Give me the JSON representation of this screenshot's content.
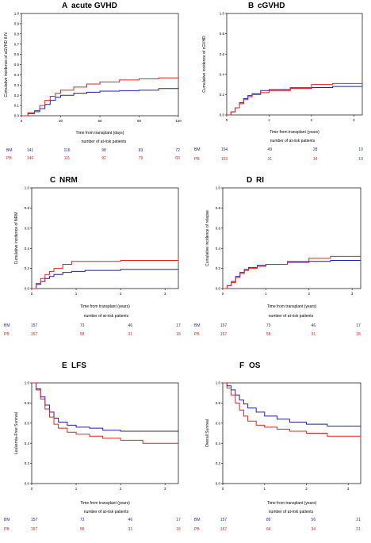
{
  "colors": {
    "bm": "#1f1fa8",
    "pb": "#e32222",
    "axis": "#000000"
  },
  "chart_data": [
    {
      "id": "A",
      "type": "line",
      "title": "acute GVHD",
      "xlabel": "Time from transplant (days)",
      "ylabel": "Cumulative incidence of aGVHD II-IV",
      "xlim": [
        0,
        120
      ],
      "ylim": [
        0,
        1
      ],
      "xticks": [
        "0",
        "30",
        "60",
        "90",
        "120"
      ],
      "yticks": [
        "0.0",
        "0.1",
        "0.2",
        "0.3",
        "0.4",
        "0.5",
        "0.6",
        "0.7",
        "0.8",
        "0.9",
        "1.0"
      ],
      "series": [
        {
          "name": "BM",
          "color": "#1f1fa8",
          "x": [
            0,
            5,
            10,
            14,
            18,
            22,
            26,
            30,
            40,
            50,
            60,
            75,
            90,
            105,
            120
          ],
          "y": [
            0,
            0.02,
            0.04,
            0.07,
            0.11,
            0.15,
            0.18,
            0.2,
            0.22,
            0.23,
            0.24,
            0.245,
            0.25,
            0.265,
            0.28
          ]
        },
        {
          "name": "PB",
          "color": "#e32222",
          "x": [
            0,
            5,
            10,
            14,
            18,
            22,
            26,
            30,
            40,
            50,
            60,
            75,
            90,
            105,
            120
          ],
          "y": [
            0,
            0.03,
            0.05,
            0.1,
            0.15,
            0.19,
            0.22,
            0.25,
            0.28,
            0.31,
            0.33,
            0.35,
            0.36,
            0.37,
            0.38
          ]
        }
      ],
      "risk": {
        "title": "number of at-risk patients",
        "labels": [
          "BM",
          "PB"
        ],
        "bm": [
          "141",
          "116",
          "98",
          "83",
          "72"
        ],
        "pb": [
          "146",
          "111",
          "92",
          "79",
          "60"
        ]
      }
    },
    {
      "id": "B",
      "type": "line",
      "title": "cGVHD",
      "xlabel": "Time from transplant (years)",
      "ylabel": "Cumulative incidence of cGVHD",
      "xlim": [
        0,
        3.2
      ],
      "ylim": [
        0,
        1
      ],
      "xticks": [
        "0",
        "1",
        "2",
        "3"
      ],
      "yticks": [
        "0.0",
        "0.2",
        "0.4",
        "0.6",
        "0.8",
        "1.0"
      ],
      "series": [
        {
          "name": "BM",
          "color": "#1f1fa8",
          "x": [
            0,
            0.1,
            0.2,
            0.3,
            0.4,
            0.5,
            0.6,
            0.8,
            1.0,
            1.5,
            2.0,
            2.5,
            3.2
          ],
          "y": [
            0,
            0.03,
            0.07,
            0.12,
            0.16,
            0.19,
            0.21,
            0.24,
            0.25,
            0.26,
            0.27,
            0.28,
            0.28
          ]
        },
        {
          "name": "PB",
          "color": "#e32222",
          "x": [
            0,
            0.1,
            0.2,
            0.3,
            0.4,
            0.5,
            0.6,
            0.8,
            1.0,
            1.5,
            2.0,
            2.5,
            3.2
          ],
          "y": [
            0,
            0.03,
            0.07,
            0.11,
            0.15,
            0.18,
            0.2,
            0.22,
            0.24,
            0.27,
            0.3,
            0.31,
            0.32
          ]
        }
      ],
      "risk": {
        "title": "number of at-risk patients",
        "labels": [
          "BM",
          "PB"
        ],
        "bm": [
          "154",
          "49",
          "28",
          "10"
        ],
        "pb": [
          "153",
          "31",
          "14",
          "10"
        ]
      }
    },
    {
      "id": "C",
      "type": "line",
      "title": "NRM",
      "xlabel": "Time from transplant (years)",
      "ylabel": "Cumulative incidence of NRM",
      "xlim": [
        0,
        3.3
      ],
      "ylim": [
        0,
        1
      ],
      "xticks": [
        "0",
        "1",
        "2",
        "3"
      ],
      "yticks": [
        "0.0",
        "0.2",
        "0.4",
        "0.6",
        "0.8",
        "1.0"
      ],
      "series": [
        {
          "name": "BM",
          "color": "#1f1fa8",
          "x": [
            0,
            0.1,
            0.2,
            0.3,
            0.4,
            0.5,
            0.7,
            0.9,
            1.2,
            1.6,
            2.0,
            2.5,
            3.3
          ],
          "y": [
            0,
            0.04,
            0.07,
            0.1,
            0.12,
            0.14,
            0.16,
            0.17,
            0.18,
            0.18,
            0.19,
            0.19,
            0.19
          ]
        },
        {
          "name": "PB",
          "color": "#e32222",
          "x": [
            0,
            0.1,
            0.2,
            0.3,
            0.4,
            0.5,
            0.7,
            0.9,
            1.2,
            1.6,
            2.0,
            2.5,
            3.3
          ],
          "y": [
            0,
            0.05,
            0.1,
            0.14,
            0.17,
            0.2,
            0.24,
            0.27,
            0.27,
            0.27,
            0.28,
            0.28,
            0.29
          ]
        }
      ],
      "risk": {
        "title": "number of at-risk patients",
        "labels": [
          "BM",
          "PB"
        ],
        "bm": [
          "157",
          "73",
          "46",
          "17"
        ],
        "pb": [
          "157",
          "58",
          "31",
          "18"
        ]
      }
    },
    {
      "id": "D",
      "type": "line",
      "title": "RI",
      "xlabel": "Time from transplant (years)",
      "ylabel": "Cumulative incidence of relapse",
      "xlim": [
        0,
        3.2
      ],
      "ylim": [
        0,
        1
      ],
      "xticks": [
        "0",
        "1",
        "2",
        "3"
      ],
      "yticks": [
        "0.0",
        "0.2",
        "0.4",
        "0.6",
        "0.8",
        "1.0"
      ],
      "series": [
        {
          "name": "BM",
          "color": "#1f1fa8",
          "x": [
            0,
            0.1,
            0.2,
            0.3,
            0.4,
            0.5,
            0.6,
            0.8,
            1.0,
            1.5,
            2.0,
            2.5,
            3.2
          ],
          "y": [
            0,
            0.03,
            0.07,
            0.12,
            0.16,
            0.19,
            0.21,
            0.23,
            0.24,
            0.26,
            0.27,
            0.28,
            0.28
          ]
        },
        {
          "name": "PB",
          "color": "#e32222",
          "x": [
            0,
            0.1,
            0.2,
            0.3,
            0.4,
            0.5,
            0.6,
            0.8,
            1.0,
            1.5,
            2.0,
            2.5,
            3.2
          ],
          "y": [
            0,
            0.03,
            0.06,
            0.11,
            0.15,
            0.18,
            0.2,
            0.22,
            0.24,
            0.27,
            0.3,
            0.32,
            0.32
          ]
        }
      ],
      "risk": {
        "title": "number of at-risk patients",
        "labels": [
          "BM",
          "PB"
        ],
        "bm": [
          "157",
          "73",
          "46",
          "17"
        ],
        "pb": [
          "157",
          "58",
          "31",
          "18"
        ]
      }
    },
    {
      "id": "E",
      "type": "line",
      "title": "LFS",
      "xlabel": "Time from transplant (years)",
      "ylabel": "Leukemia-Free Survival",
      "xlim": [
        0,
        3.3
      ],
      "ylim": [
        0,
        1
      ],
      "xticks": [
        "0",
        "1",
        "2",
        "3"
      ],
      "yticks": [
        "0.0",
        "0.2",
        "0.4",
        "0.6",
        "0.8",
        "1.0"
      ],
      "series": [
        {
          "name": "BM",
          "color": "#1f1fa8",
          "x": [
            0,
            0.1,
            0.2,
            0.3,
            0.4,
            0.5,
            0.6,
            0.8,
            1.0,
            1.3,
            1.6,
            2.0,
            2.5,
            3.3
          ],
          "y": [
            1,
            0.94,
            0.86,
            0.78,
            0.71,
            0.65,
            0.61,
            0.58,
            0.56,
            0.55,
            0.53,
            0.52,
            0.52,
            0.52
          ]
        },
        {
          "name": "PB",
          "color": "#e32222",
          "x": [
            0,
            0.1,
            0.2,
            0.3,
            0.4,
            0.5,
            0.6,
            0.8,
            1.0,
            1.3,
            1.6,
            2.0,
            2.5,
            3.3
          ],
          "y": [
            1,
            0.93,
            0.84,
            0.74,
            0.66,
            0.59,
            0.55,
            0.51,
            0.49,
            0.47,
            0.45,
            0.43,
            0.4,
            0.39
          ]
        }
      ],
      "risk": {
        "title": "number of at-risk patients",
        "labels": [
          "BM",
          "PB"
        ],
        "bm": [
          "157",
          "73",
          "46",
          "17"
        ],
        "pb": [
          "157",
          "58",
          "31",
          "18"
        ]
      }
    },
    {
      "id": "F",
      "type": "line",
      "title": "OS",
      "xlabel": "Time from transplant (years)",
      "ylabel": "Overall Survival",
      "xlim": [
        0,
        3.3
      ],
      "ylim": [
        0,
        1
      ],
      "xticks": [
        "0",
        "1",
        "2",
        "3"
      ],
      "yticks": [
        "0.0",
        "0.2",
        "0.4",
        "0.6",
        "0.8",
        "1.0"
      ],
      "series": [
        {
          "name": "BM",
          "color": "#1f1fa8",
          "x": [
            0,
            0.1,
            0.2,
            0.3,
            0.4,
            0.5,
            0.6,
            0.8,
            1.0,
            1.3,
            1.6,
            2.0,
            2.5,
            3.3
          ],
          "y": [
            1,
            0.97,
            0.93,
            0.88,
            0.83,
            0.79,
            0.75,
            0.71,
            0.67,
            0.64,
            0.61,
            0.59,
            0.57,
            0.56
          ]
        },
        {
          "name": "PB",
          "color": "#e32222",
          "x": [
            0,
            0.1,
            0.2,
            0.3,
            0.4,
            0.5,
            0.6,
            0.8,
            1.0,
            1.3,
            1.6,
            2.0,
            2.5,
            3.3
          ],
          "y": [
            1,
            0.95,
            0.88,
            0.8,
            0.73,
            0.67,
            0.62,
            0.58,
            0.56,
            0.54,
            0.52,
            0.5,
            0.47,
            0.44
          ]
        }
      ],
      "risk": {
        "title": "number of at-risk patients",
        "labels": [
          "BM",
          "PB"
        ],
        "bm": [
          "157",
          "89",
          "56",
          "21"
        ],
        "pb": [
          "157",
          "64",
          "34",
          "21"
        ]
      }
    }
  ]
}
